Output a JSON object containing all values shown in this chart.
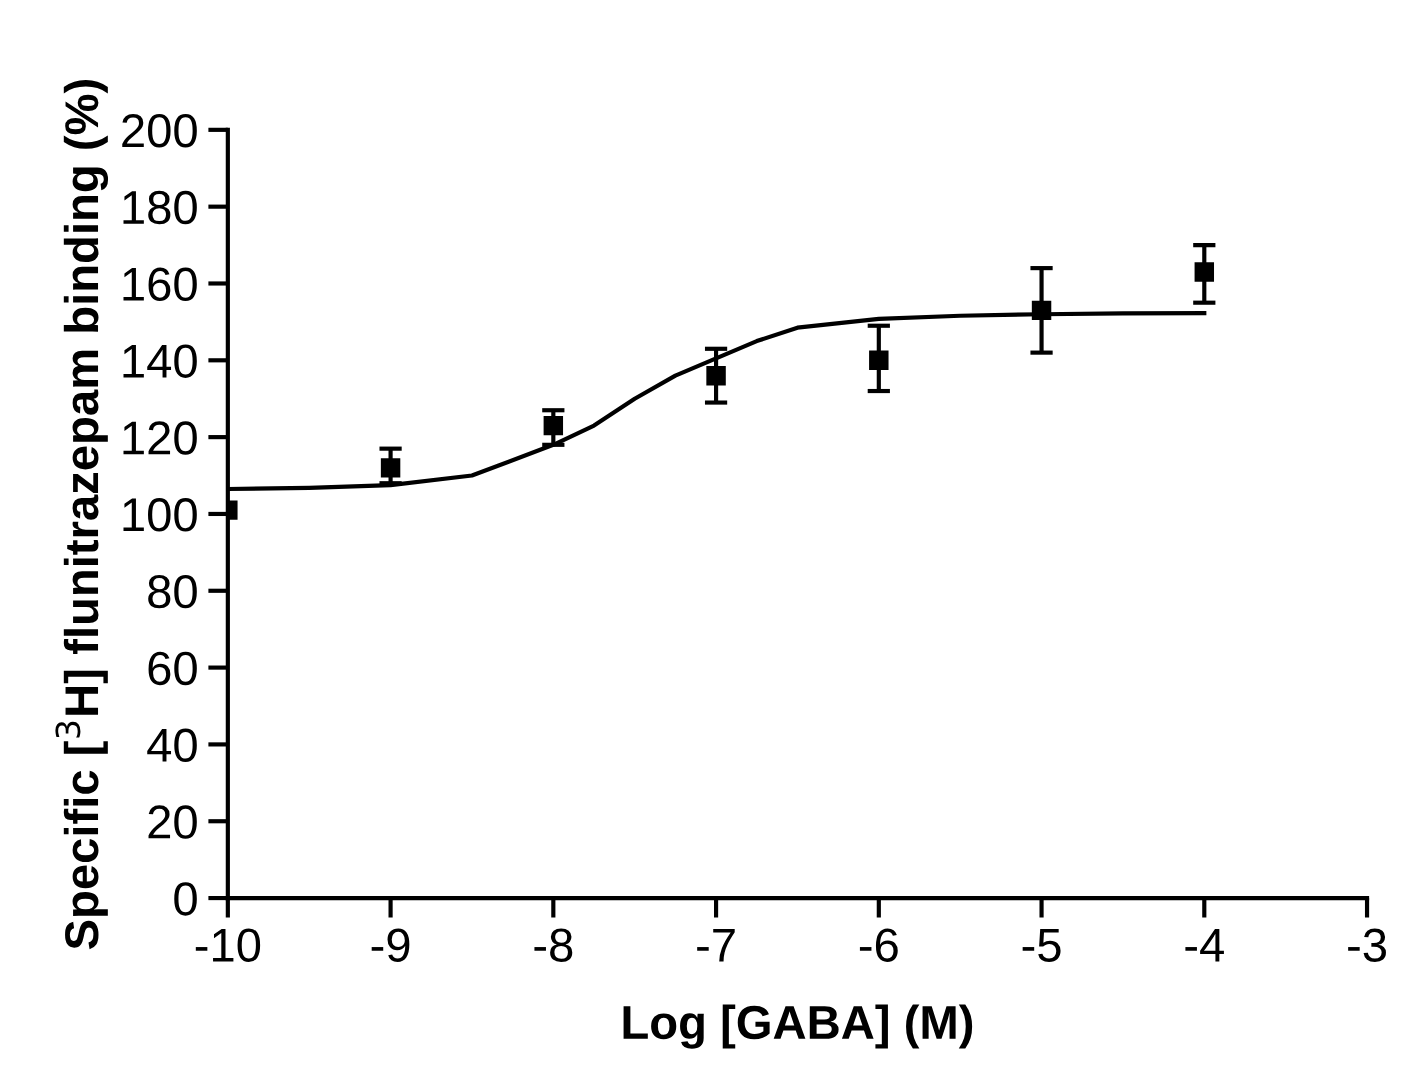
{
  "chart_data": {
    "type": "scatter",
    "xlabel": "Log [GABA] (M)",
    "ylabel": "Specific [$^{3}$H] flunitrazepam binding (%)",
    "xlim": [
      -10,
      -3
    ],
    "xticks": [
      -10,
      -9,
      -8,
      -7,
      -6,
      -5,
      -4,
      -3
    ],
    "ylim": [
      0,
      200
    ],
    "yticks": [
      0,
      20,
      40,
      60,
      80,
      100,
      120,
      140,
      160,
      180,
      200
    ],
    "grid": false,
    "legend": false,
    "series": [
      {
        "color": "#000000",
        "marker": "square",
        "x": [
          -10,
          -9,
          -8,
          -7,
          -6,
          -5,
          -4
        ],
        "values": [
          101,
          112,
          123,
          136,
          140,
          153,
          163
        ],
        "errors": [
          null,
          [
            108,
            117
          ],
          [
            118,
            127
          ],
          [
            129,
            143
          ],
          [
            132,
            149
          ],
          [
            142,
            164
          ],
          [
            155,
            170
          ]
        ]
      },
      {
        "type": "line",
        "color": "#000000",
        "marker": "none",
        "line_style": "solid",
        "x": [
          -10,
          -9.5,
          -9,
          -8.5,
          -8,
          -7.75,
          -7.5,
          -7.25,
          -7,
          -6.75,
          -6.5,
          -6,
          -5.5,
          -5,
          -4.5,
          -4
        ],
        "values": [
          106.5,
          106.8,
          107.5,
          110,
          118,
          123,
          130,
          136,
          140.5,
          145,
          148.5,
          150.8,
          151.6,
          152,
          152.2,
          152.3
        ]
      }
    ]
  }
}
